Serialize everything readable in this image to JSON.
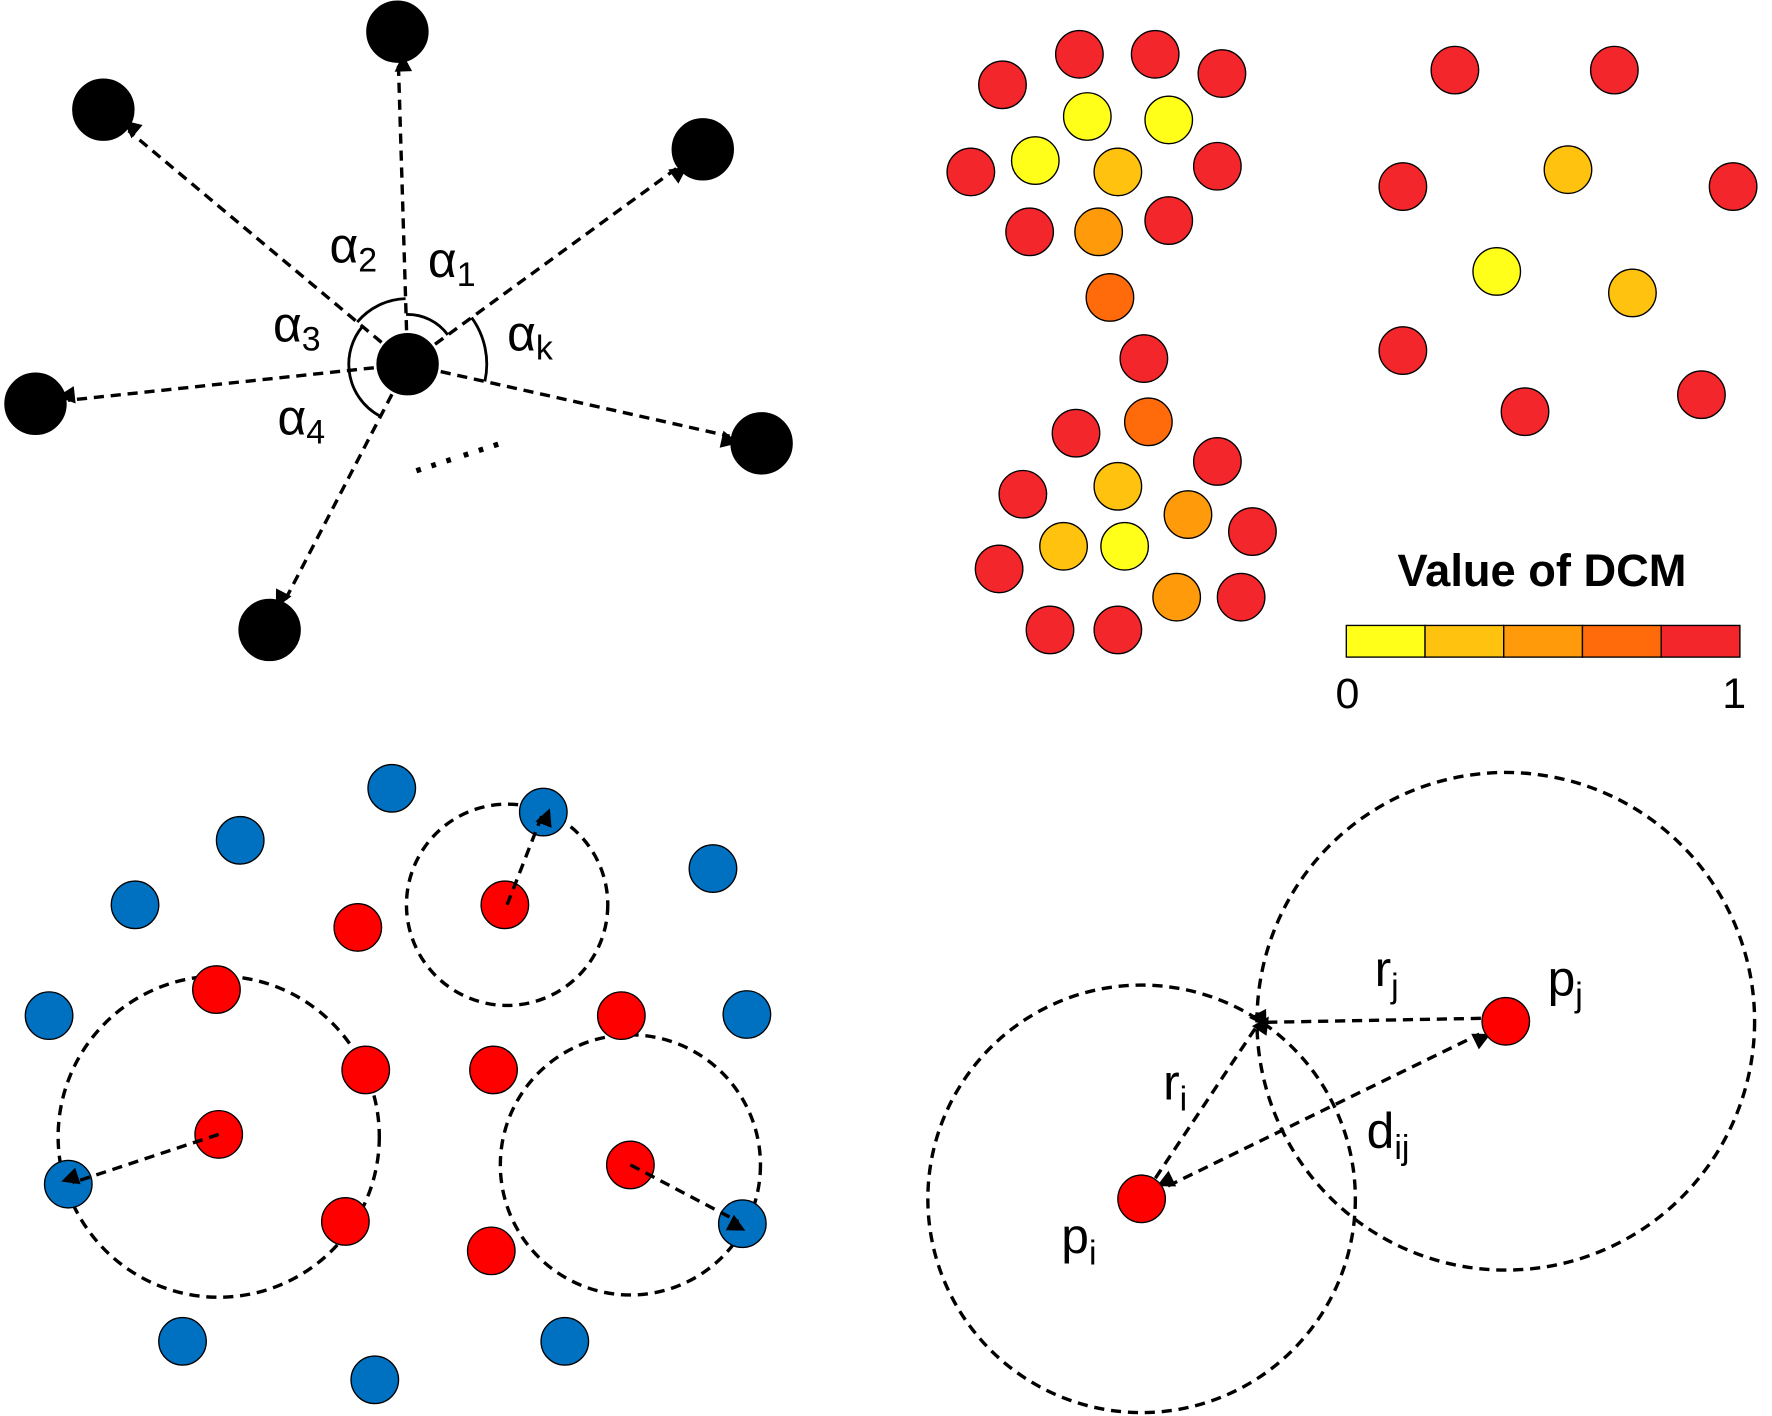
{
  "panel_a": {
    "angle_labels": [
      {
        "symbol": "α",
        "sub": "1"
      },
      {
        "symbol": "α",
        "sub": "2"
      },
      {
        "symbol": "α",
        "sub": "3"
      },
      {
        "symbol": "α",
        "sub": "4"
      },
      {
        "symbol": "α",
        "sub": "k"
      }
    ],
    "ellipsis": "……"
  },
  "panel_b": {
    "legend_title": "Value of DCM",
    "scale_min": 0,
    "scale_max": 1
  },
  "panel_d": {
    "labels": [
      {
        "symbol": "r",
        "sub": "j"
      },
      {
        "symbol": "p",
        "sub": "j"
      },
      {
        "symbol": "r",
        "sub": "i"
      },
      {
        "symbol": "d",
        "sub": "ij"
      },
      {
        "symbol": "p",
        "sub": "i"
      }
    ]
  }
}
